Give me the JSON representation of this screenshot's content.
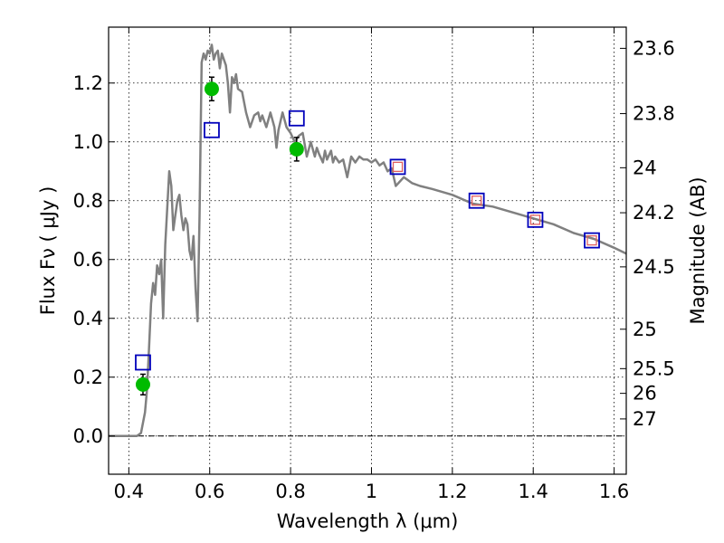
{
  "chart_data": {
    "type": "scatter",
    "xlabel": "Wavelength  λ (μm)",
    "ylabel": "Flux  Fν ( μJy )",
    "ylabel_right": "Magnitude (AB)",
    "xlim": [
      0.35,
      1.63
    ],
    "ylim": [
      -0.13,
      1.39
    ],
    "grid": true,
    "xticks": [
      {
        "value": 0.4,
        "label": "0.4"
      },
      {
        "value": 0.6,
        "label": "0.6"
      },
      {
        "value": 0.8,
        "label": "0.8"
      },
      {
        "value": 1.0,
        "label": "1"
      },
      {
        "value": 1.2,
        "label": "1.2"
      },
      {
        "value": 1.4,
        "label": "1.4"
      },
      {
        "value": 1.6,
        "label": "1.6"
      }
    ],
    "yticks": [
      {
        "value": 0.0,
        "label": "0.0"
      },
      {
        "value": 0.2,
        "label": "0.2"
      },
      {
        "value": 0.4,
        "label": "0.4"
      },
      {
        "value": 0.6,
        "label": "0.6"
      },
      {
        "value": 0.8,
        "label": "0.8"
      },
      {
        "value": 1.0,
        "label": "1.0"
      },
      {
        "value": 1.2,
        "label": "1.2"
      }
    ],
    "right_ticks": [
      {
        "label": "23.6",
        "flux": 1.318
      },
      {
        "label": "23.8",
        "flux": 1.096
      },
      {
        "label": "24",
        "flux": 0.912
      },
      {
        "label": "24.2",
        "flux": 0.759
      },
      {
        "label": "24.5",
        "flux": 0.575
      },
      {
        "label": "25",
        "flux": 0.363
      },
      {
        "label": "25.5",
        "flux": 0.229
      },
      {
        "label": "26",
        "flux": 0.145
      },
      {
        "label": "27",
        "flux": 0.058
      }
    ],
    "series": [
      {
        "type": "line",
        "color": "#808080",
        "x": [
          0.35,
          0.42,
          0.43,
          0.44,
          0.445,
          0.45,
          0.455,
          0.46,
          0.465,
          0.47,
          0.475,
          0.48,
          0.485,
          0.49,
          0.5,
          0.505,
          0.51,
          0.515,
          0.52,
          0.525,
          0.53,
          0.535,
          0.54,
          0.545,
          0.55,
          0.555,
          0.56,
          0.565,
          0.57,
          0.575,
          0.58,
          0.585,
          0.59,
          0.595,
          0.6,
          0.605,
          0.61,
          0.615,
          0.62,
          0.625,
          0.63,
          0.64,
          0.645,
          0.65,
          0.655,
          0.66,
          0.665,
          0.67,
          0.68,
          0.69,
          0.7,
          0.71,
          0.72,
          0.725,
          0.73,
          0.74,
          0.75,
          0.76,
          0.765,
          0.77,
          0.78,
          0.79,
          0.8,
          0.81,
          0.82,
          0.83,
          0.84,
          0.85,
          0.86,
          0.865,
          0.87,
          0.88,
          0.885,
          0.89,
          0.9,
          0.905,
          0.91,
          0.92,
          0.93,
          0.94,
          0.95,
          0.96,
          0.965,
          0.97,
          0.98,
          0.99,
          1.0,
          1.01,
          1.02,
          1.03,
          1.04,
          1.05,
          1.06,
          1.08,
          1.09,
          1.1,
          1.12,
          1.15,
          1.2,
          1.25,
          1.3,
          1.35,
          1.4,
          1.45,
          1.5,
          1.55,
          1.6,
          1.63
        ],
        "y": [
          0.0,
          0.0,
          0.01,
          0.08,
          0.16,
          0.3,
          0.45,
          0.52,
          0.48,
          0.58,
          0.55,
          0.6,
          0.4,
          0.65,
          0.9,
          0.85,
          0.7,
          0.75,
          0.8,
          0.82,
          0.75,
          0.7,
          0.74,
          0.72,
          0.63,
          0.6,
          0.68,
          0.5,
          0.39,
          0.75,
          1.27,
          1.3,
          1.28,
          1.31,
          1.3,
          1.33,
          1.28,
          1.3,
          1.31,
          1.25,
          1.3,
          1.26,
          1.2,
          1.1,
          1.22,
          1.2,
          1.23,
          1.18,
          1.17,
          1.1,
          1.05,
          1.09,
          1.1,
          1.07,
          1.09,
          1.05,
          1.1,
          1.05,
          0.98,
          1.04,
          1.1,
          1.05,
          1.03,
          1.0,
          1.02,
          1.03,
          0.95,
          1.0,
          0.95,
          0.98,
          0.96,
          0.93,
          0.97,
          0.94,
          0.97,
          0.93,
          0.95,
          0.93,
          0.94,
          0.88,
          0.95,
          0.93,
          0.94,
          0.95,
          0.94,
          0.94,
          0.93,
          0.94,
          0.92,
          0.93,
          0.9,
          0.91,
          0.85,
          0.88,
          0.87,
          0.86,
          0.85,
          0.84,
          0.82,
          0.79,
          0.78,
          0.76,
          0.74,
          0.72,
          0.69,
          0.67,
          0.64,
          0.62
        ]
      },
      {
        "type": "scatter",
        "marker": "circle",
        "color": "#00bb00",
        "x": [
          0.435,
          0.605,
          0.815
        ],
        "y": [
          0.175,
          1.18,
          0.975
        ],
        "yerr": [
          0.035,
          0.04,
          0.04
        ]
      },
      {
        "type": "scatter",
        "marker": "square",
        "color": "#0000bb",
        "x": [
          0.435,
          0.605,
          0.815,
          1.065,
          1.26,
          1.405,
          1.545
        ],
        "y": [
          0.25,
          1.04,
          1.08,
          0.915,
          0.8,
          0.735,
          0.665
        ]
      },
      {
        "type": "scatter",
        "marker": "square",
        "color": "#e06060",
        "x": [
          1.065,
          1.26,
          1.405,
          1.545
        ],
        "y": [
          0.915,
          0.8,
          0.735,
          0.665
        ]
      }
    ]
  }
}
